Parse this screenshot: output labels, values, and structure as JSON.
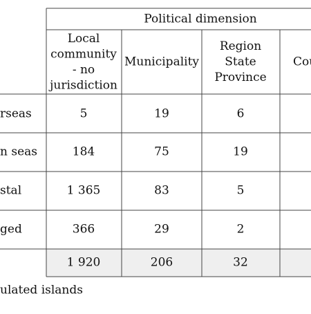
{
  "table": {
    "group_header": "Political dimension",
    "columns": [
      [
        "Local",
        "community",
        "- no",
        "jurisdiction"
      ],
      [
        "Municipality"
      ],
      [
        "Region",
        "State",
        "Province"
      ],
      [
        "Cou"
      ]
    ],
    "rows": [
      {
        "label": "rseas",
        "cells": [
          "5",
          "19",
          "6"
        ]
      },
      {
        "label": "n seas",
        "cells": [
          "184",
          "75",
          "19"
        ]
      },
      {
        "label": "stal",
        "cells": [
          "1 365",
          "83",
          "5"
        ]
      },
      {
        "label": "ged",
        "cells": [
          "366",
          "29",
          "2"
        ]
      }
    ],
    "total": [
      "1 920",
      "206",
      "32"
    ]
  },
  "footnote": "ulated islands"
}
